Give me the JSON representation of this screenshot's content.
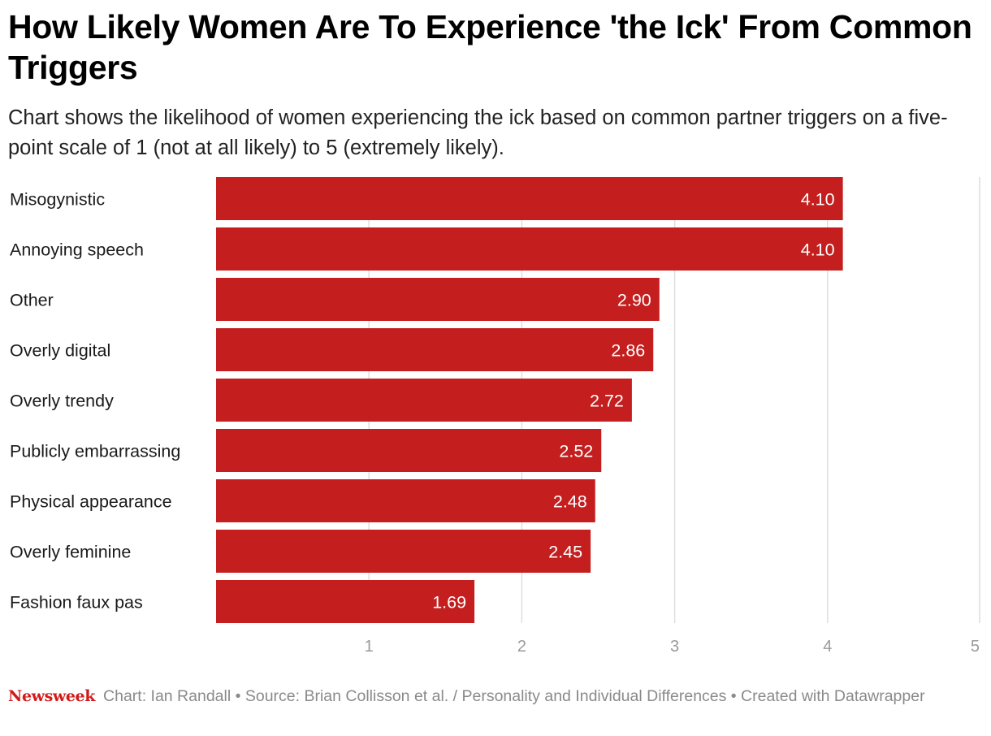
{
  "title": "How Likely Women Are To Experience 'the Ick' From Common Triggers",
  "subtitle": "Chart shows the likelihood of women experiencing the ick based on common partner triggers on a five-point scale of 1 (not at all likely) to 5 (extremely likely).",
  "footer": {
    "logo": "Newsweek",
    "text": "Chart: Ian Randall • Source: Brian Collisson et al. / Personality and Individual Differences • Created with Datawrapper"
  },
  "colors": {
    "bar": "#c41e1e",
    "grid": "#dedede",
    "tick": "#9a9a9a",
    "label": "#1a1a1a",
    "value": "#ffffff"
  },
  "chart_data": {
    "type": "bar",
    "orientation": "horizontal",
    "categories": [
      "Misogynistic",
      "Annoying speech",
      "Other",
      "Overly digital",
      "Overly trendy",
      "Publicly embarrassing",
      "Physical appearance",
      "Overly feminine",
      "Fashion faux pas"
    ],
    "values": [
      4.1,
      4.1,
      2.9,
      2.86,
      2.72,
      2.52,
      2.48,
      2.45,
      1.69
    ],
    "value_labels": [
      "4.10",
      "4.10",
      "2.90",
      "2.86",
      "2.72",
      "2.52",
      "2.48",
      "2.45",
      "1.69"
    ],
    "xlim": [
      0,
      5
    ],
    "xticks": [
      1,
      2,
      3,
      4,
      5
    ],
    "grid": true,
    "xlabel": "",
    "ylabel": ""
  }
}
